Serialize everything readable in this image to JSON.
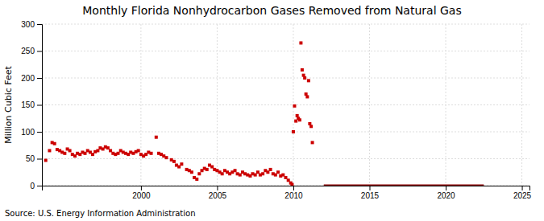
{
  "chart_data": {
    "type": "scatter",
    "title": "Monthly Florida Nonhydrocarbon Gases Removed from Natural Gas",
    "y_label": "Million Cubic Feet",
    "annotations": [
      "Source: U.S. Energy Information Administration"
    ],
    "xlim": [
      1993.5,
      2025.5
    ],
    "ylim": [
      0,
      300
    ],
    "xticks": [
      2000,
      2005,
      2010,
      2015,
      2020,
      2025
    ],
    "yticks": [
      0,
      50,
      100,
      150,
      200,
      250,
      300
    ],
    "grid": true,
    "series": [
      {
        "type": "scatter",
        "color": "#cc0000",
        "marker": "square",
        "x": [
          1993.75,
          1994.0,
          1994.17,
          1994.33,
          1994.5,
          1994.67,
          1994.83,
          1995.0,
          1995.17,
          1995.33,
          1995.5,
          1995.67,
          1995.83,
          1996.0,
          1996.17,
          1996.33,
          1996.5,
          1996.67,
          1996.83,
          1997.0,
          1997.17,
          1997.33,
          1997.5,
          1997.67,
          1997.83,
          1998.0,
          1998.17,
          1998.33,
          1998.5,
          1998.67,
          1998.83,
          1999.0,
          1999.17,
          1999.33,
          1999.5,
          1999.67,
          1999.83,
          2000.0,
          2000.17,
          2000.33,
          2000.5,
          2000.67,
          2001.0,
          2001.17,
          2001.33,
          2001.5,
          2001.67,
          2002.0,
          2002.17,
          2002.33,
          2002.5,
          2002.67,
          2003.0,
          2003.17,
          2003.33,
          2003.5,
          2003.67,
          2003.83,
          2004.0,
          2004.17,
          2004.33,
          2004.5,
          2004.67,
          2004.83,
          2005.0,
          2005.17,
          2005.33,
          2005.5,
          2005.67,
          2005.83,
          2006.0,
          2006.17,
          2006.33,
          2006.5,
          2006.67,
          2006.83,
          2007.0,
          2007.17,
          2007.33,
          2007.5,
          2007.67,
          2007.83,
          2008.0,
          2008.17,
          2008.33,
          2008.5,
          2008.67,
          2008.83,
          2009.0,
          2009.17,
          2009.33,
          2009.5,
          2009.67,
          2009.83,
          2009.92,
          2010.0,
          2010.08,
          2010.17,
          2010.25,
          2010.33,
          2010.42,
          2010.5,
          2010.58,
          2010.67,
          2010.75,
          2010.83,
          2010.92,
          2011.0,
          2011.08,
          2011.17,
          2011.25
        ],
        "values": [
          47,
          65,
          80,
          78,
          67,
          65,
          62,
          60,
          68,
          65,
          58,
          55,
          60,
          58,
          62,
          60,
          65,
          62,
          58,
          63,
          65,
          70,
          68,
          72,
          70,
          65,
          60,
          58,
          60,
          65,
          62,
          60,
          58,
          62,
          60,
          63,
          65,
          58,
          55,
          58,
          62,
          60,
          90,
          60,
          58,
          55,
          52,
          48,
          45,
          38,
          35,
          40,
          30,
          28,
          25,
          15,
          12,
          22,
          28,
          32,
          30,
          38,
          35,
          30,
          28,
          25,
          22,
          28,
          25,
          22,
          25,
          28,
          22,
          20,
          25,
          22,
          20,
          18,
          22,
          20,
          25,
          20,
          22,
          28,
          25,
          30,
          22,
          20,
          25,
          18,
          20,
          15,
          10,
          5,
          2,
          100,
          148,
          120,
          130,
          125,
          122,
          265,
          215,
          205,
          200,
          170,
          165,
          195,
          115,
          110,
          80
        ]
      },
      {
        "type": "line",
        "color": "#8b0000",
        "line_style": "solid",
        "x": [
          2012.0,
          2022.5
        ],
        "values": [
          0,
          0
        ]
      }
    ]
  }
}
